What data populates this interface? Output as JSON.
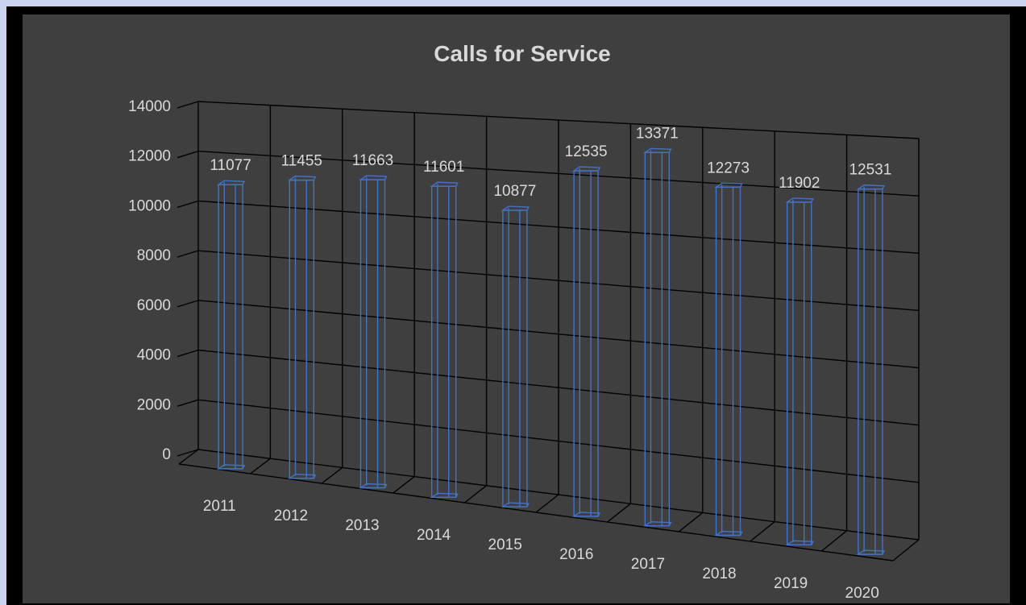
{
  "chart_data": {
    "type": "bar",
    "title": "Calls for Service",
    "categories": [
      "2011",
      "2012",
      "2013",
      "2014",
      "2015",
      "2016",
      "2017",
      "2018",
      "2019",
      "2020"
    ],
    "values": [
      11077,
      11455,
      11663,
      11601,
      10877,
      12535,
      13371,
      12273,
      11902,
      12531
    ],
    "yticks": [
      "0",
      "2000",
      "4000",
      "6000",
      "8000",
      "10000",
      "12000",
      "14000"
    ],
    "ylim": [
      0,
      14000
    ],
    "grid": true,
    "legend": "none",
    "style": "3d-perspective-outline",
    "colors": {
      "background": "#3f3f3f",
      "bar_outline": "#4472c4",
      "gridlines": "#000000",
      "text": "#d9d9d9"
    }
  }
}
